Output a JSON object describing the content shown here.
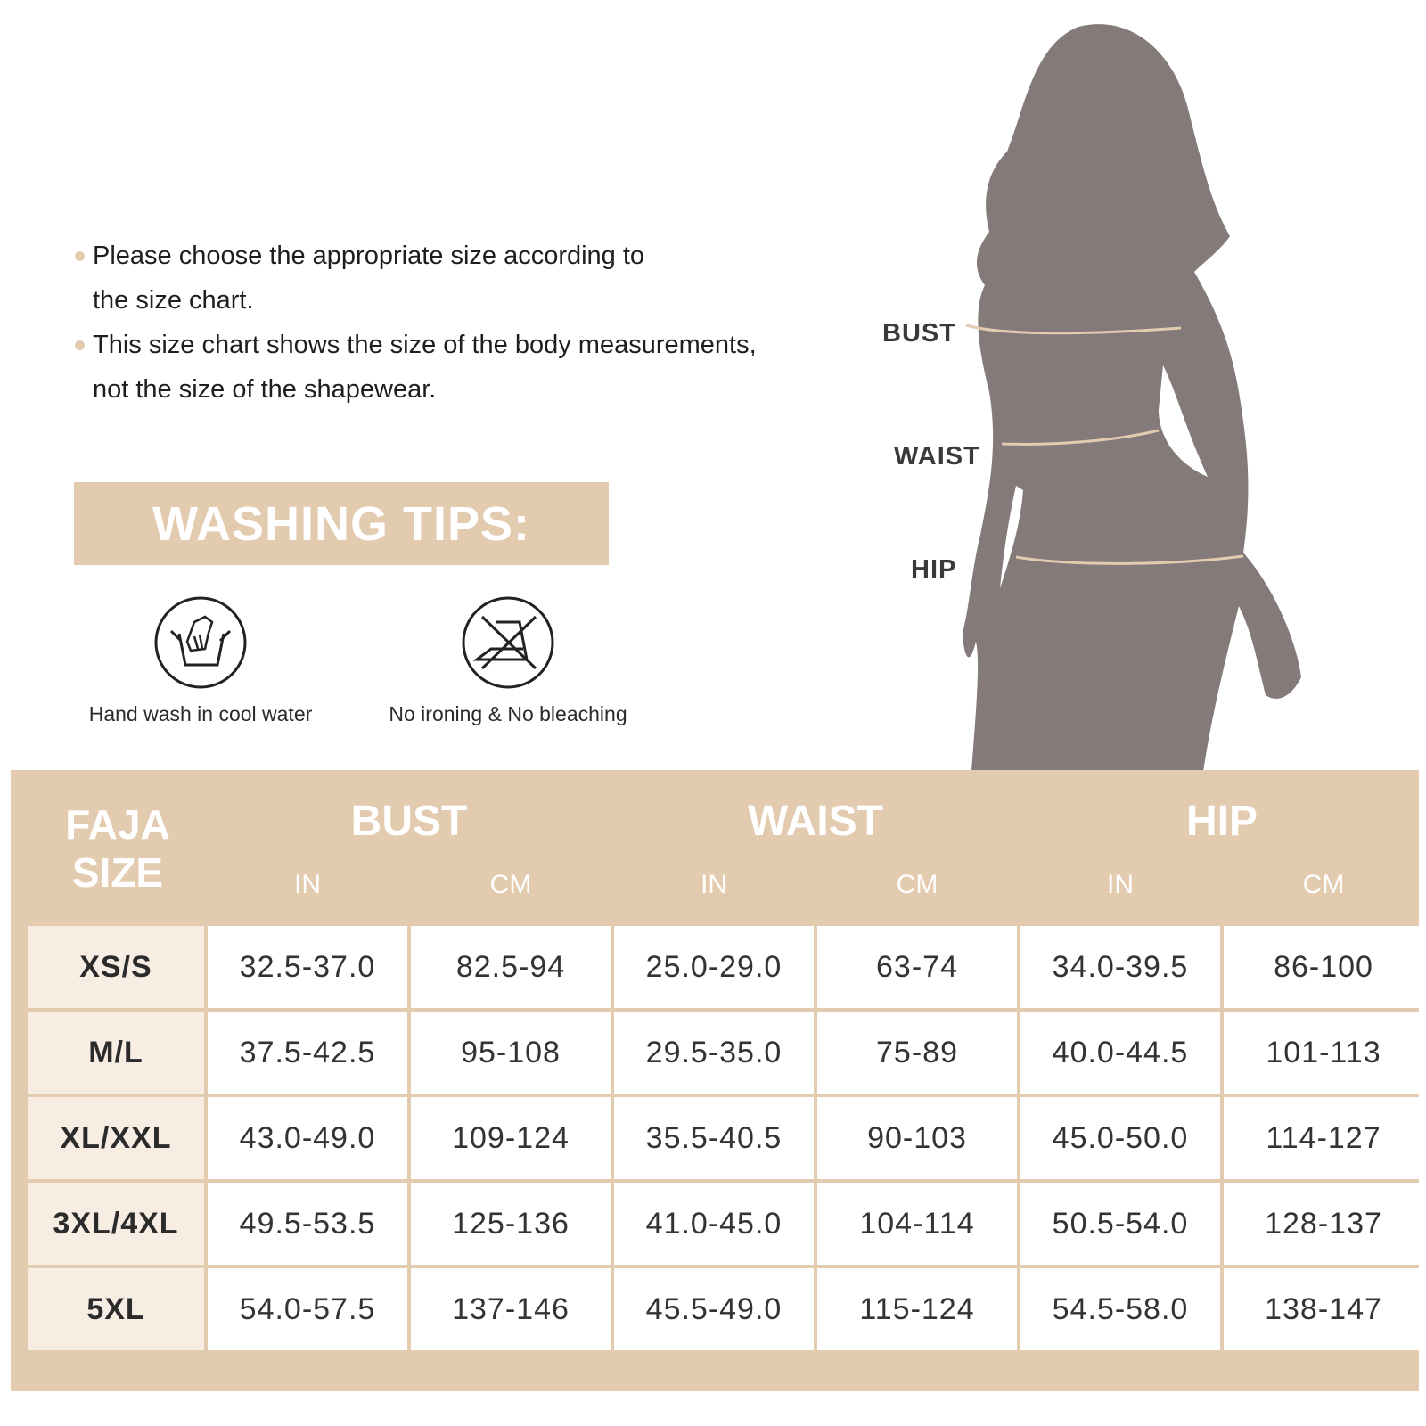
{
  "notes": [
    {
      "line1": "Please choose the appropriate size according to",
      "line2": "the size chart."
    },
    {
      "line1": "This size chart shows the size of the body measurements,",
      "line2": "not the size of the shapewear."
    }
  ],
  "washing": {
    "title": "WASHING TIPS:",
    "items": [
      {
        "icon": "hand-wash-icon",
        "label": "Hand wash in cool water"
      },
      {
        "icon": "no-ironing-icon",
        "label": "No ironing & No bleaching"
      }
    ]
  },
  "figure": {
    "labels": {
      "bust": "BUST",
      "waist": "WAIST",
      "hip": "HIP"
    }
  },
  "colors": {
    "accent": "#e3cbb0",
    "size_cell": "#f7ede3",
    "silhouette": "#847a7a"
  },
  "table": {
    "size_header": {
      "line1": "FAJA",
      "line2": "SIZE"
    },
    "groups": [
      "BUST",
      "WAIST",
      "HIP"
    ],
    "units": [
      "IN",
      "CM",
      "IN",
      "CM",
      "IN",
      "CM"
    ],
    "rows": [
      {
        "size": "XS/S",
        "values": [
          "32.5-37.0",
          "82.5-94",
          "25.0-29.0",
          "63-74",
          "34.0-39.5",
          "86-100"
        ]
      },
      {
        "size": "M/L",
        "values": [
          "37.5-42.5",
          "95-108",
          "29.5-35.0",
          "75-89",
          "40.0-44.5",
          "101-113"
        ]
      },
      {
        "size": "XL/XXL",
        "values": [
          "43.0-49.0",
          "109-124",
          "35.5-40.5",
          "90-103",
          "45.0-50.0",
          "114-127"
        ]
      },
      {
        "size": "3XL/4XL",
        "values": [
          "49.5-53.5",
          "125-136",
          "41.0-45.0",
          "104-114",
          "50.5-54.0",
          "128-137"
        ]
      },
      {
        "size": "5XL",
        "values": [
          "54.0-57.5",
          "137-146",
          "45.5-49.0",
          "115-124",
          "54.5-58.0",
          "138-147"
        ]
      }
    ]
  }
}
